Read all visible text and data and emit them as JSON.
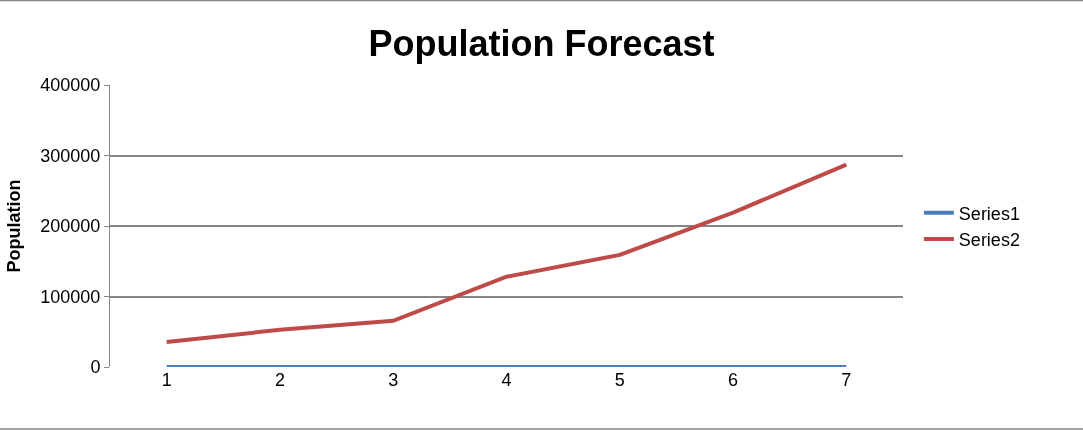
{
  "chart_data": {
    "type": "line",
    "title": "Population Forecast",
    "ylabel": "Population",
    "categories": [
      "1",
      "2",
      "3",
      "4",
      "5",
      "6",
      "7"
    ],
    "series": [
      {
        "name": "Series1",
        "color": "#4a7ebb",
        "values": [
          0,
          0,
          0,
          0,
          0,
          0,
          0
        ]
      },
      {
        "name": "Series2",
        "color": "#be4b48",
        "values": [
          35600,
          52700,
          65500,
          128000,
          159000,
          219000,
          287000
        ]
      }
    ],
    "ylim": [
      0,
      400000
    ],
    "yticks": [
      0,
      100000,
      200000,
      300000,
      400000
    ],
    "grid": "y",
    "legend": "right",
    "marker": "none",
    "line_style": "solid"
  }
}
